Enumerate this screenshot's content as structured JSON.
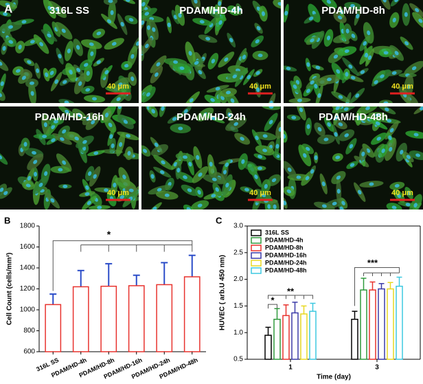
{
  "panel_a": {
    "label": "A",
    "images": [
      {
        "label": "316L SS",
        "scale_bar": "40 μm"
      },
      {
        "label": "PDAM/HD-4h",
        "scale_bar": "40 μm"
      },
      {
        "label": "PDAM/HD-8h",
        "scale_bar": "40 μm"
      },
      {
        "label": "PDAM/HD-16h",
        "scale_bar": "40 μm"
      },
      {
        "label": "PDAM/HD-24h",
        "scale_bar": "40 μm"
      },
      {
        "label": "PDAM/HD-48h",
        "scale_bar": "40 μm"
      }
    ]
  },
  "chart_data": [
    {
      "type": "bar",
      "panel_label": "B",
      "y_label": "Cell Count (cells/mm²)",
      "categories": [
        "316L SS",
        "PDAM/HD-4h",
        "PDAM/HD-8h",
        "PDAM/HD-16h",
        "PDAM/HD-24h",
        "PDAM/HD-48h"
      ],
      "values": [
        1050,
        1220,
        1225,
        1230,
        1240,
        1315
      ],
      "errors": [
        100,
        155,
        215,
        100,
        210,
        205
      ],
      "color": "#e8322d",
      "error_color": "#2a4cc8",
      "ylim": [
        600,
        1800
      ],
      "yticks": [
        600,
        800,
        1000,
        1200,
        1400,
        1600,
        1800
      ],
      "annotations": [
        "*"
      ]
    },
    {
      "type": "grouped_bar",
      "panel_label": "C",
      "y_label": "HUVEC ( arb.U 450 nm)",
      "x_label": "Time (day)",
      "categories": [
        "1",
        "3"
      ],
      "series": [
        {
          "name": "316L SS",
          "color": "#000000",
          "values": [
            0.95,
            1.25
          ],
          "errors": [
            0.15,
            0.15
          ]
        },
        {
          "name": "PDAM/HD-4h",
          "color": "#2e9a3c",
          "values": [
            1.25,
            1.8
          ],
          "errors": [
            0.2,
            0.22
          ]
        },
        {
          "name": "PDAM/HD-8h",
          "color": "#e8322d",
          "values": [
            1.32,
            1.8
          ],
          "errors": [
            0.2,
            0.15
          ]
        },
        {
          "name": "PDAM/HD-16h",
          "color": "#3a3aa8",
          "values": [
            1.37,
            1.82
          ],
          "errors": [
            0.2,
            0.1
          ]
        },
        {
          "name": "PDAM/HD-24h",
          "color": "#e8d820",
          "values": [
            1.35,
            1.82
          ],
          "errors": [
            0.15,
            0.12
          ]
        },
        {
          "name": "PDAM/HD-48h",
          "color": "#3cc8e0",
          "values": [
            1.4,
            1.87
          ],
          "errors": [
            0.15,
            0.17
          ]
        }
      ],
      "ylim": [
        0.5,
        3.0
      ],
      "yticks": [
        0.5,
        {
          "value": 1.0,
          "label": "1.0"
        },
        1.5,
        {
          "value": 2.0,
          "label": "2.0"
        },
        2.5,
        {
          "value": 3.0,
          "label": "3.0"
        }
      ],
      "legend": "upper left",
      "annotations": [
        "*",
        "**",
        "***"
      ]
    }
  ]
}
